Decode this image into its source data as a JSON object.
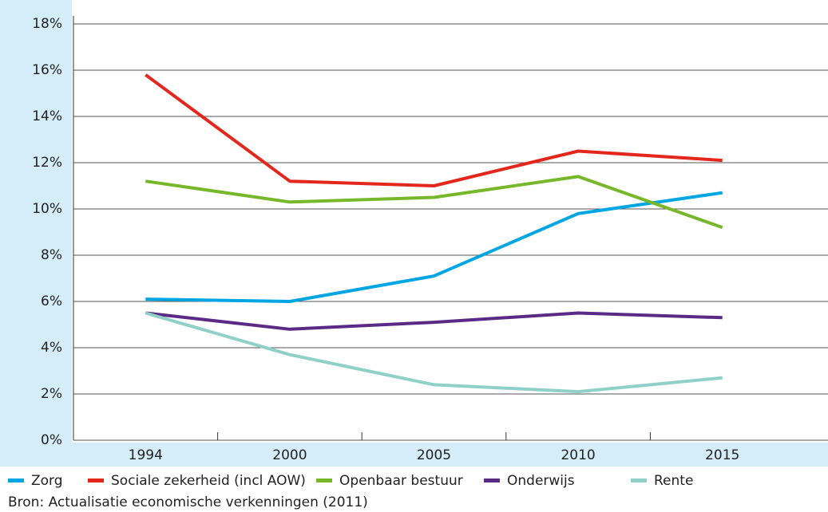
{
  "chart_data": {
    "type": "line",
    "categories": [
      "1994",
      "2000",
      "2005",
      "2010",
      "2015"
    ],
    "series": [
      {
        "name": "Zorg",
        "color": "#00a6e2",
        "values": [
          6.1,
          6.0,
          7.1,
          9.8,
          10.7
        ]
      },
      {
        "name": "Sociale zekerheid (incl AOW)",
        "color": "#e3271c",
        "values": [
          15.8,
          11.2,
          11.0,
          12.5,
          12.1
        ]
      },
      {
        "name": "Openbaar bestuur",
        "color": "#76b82a",
        "values": [
          11.2,
          10.3,
          10.5,
          11.4,
          9.2
        ]
      },
      {
        "name": "Onderwijs",
        "color": "#5b2a86",
        "values": [
          5.5,
          4.8,
          5.1,
          5.5,
          5.3
        ]
      },
      {
        "name": "Rente",
        "color": "#8fd1c9",
        "values": [
          5.5,
          3.7,
          2.4,
          2.1,
          2.7
        ]
      }
    ],
    "ylim": [
      0,
      18
    ],
    "yticks": [
      {
        "value": 0,
        "label": "0%"
      },
      {
        "value": 2,
        "label": "2%"
      },
      {
        "value": 4,
        "label": "4%"
      },
      {
        "value": 6,
        "label": "6%"
      },
      {
        "value": 8,
        "label": "8%"
      },
      {
        "value": 10,
        "label": "10%"
      },
      {
        "value": 12,
        "label": "12%"
      },
      {
        "value": 14,
        "label": "14%"
      },
      {
        "value": 16,
        "label": "16%"
      },
      {
        "value": 18,
        "label": "18%"
      }
    ],
    "grid": true,
    "source": "Bron: Actualisatie economische verkenningen (2011)"
  }
}
